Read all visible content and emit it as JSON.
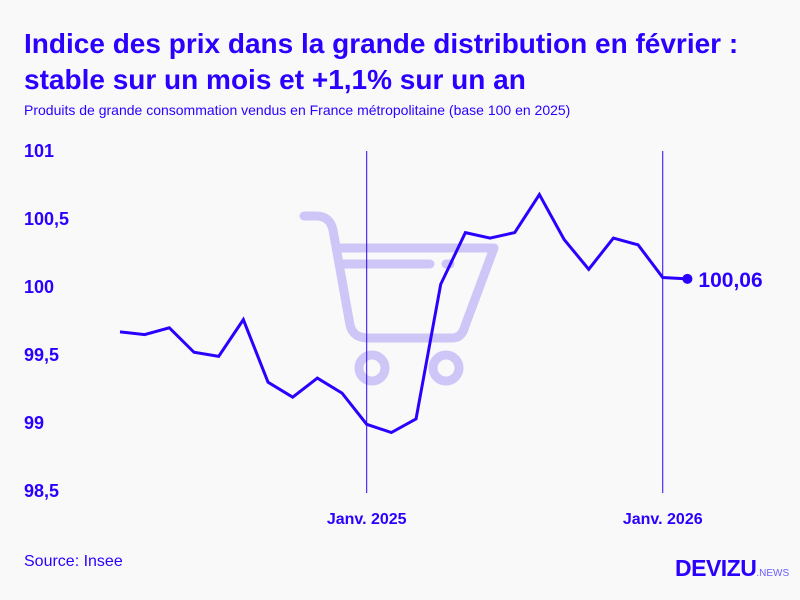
{
  "title": "Indice des prix dans la grande distribution en février : stable sur un mois et +1,1% sur un an",
  "subtitle": "Produits de grande consommation vendus en France métropolitaine (base 100 en 2025)",
  "source": "Source: Insee",
  "logo": {
    "main": "DEVIZU",
    "suffix": ".NEWS"
  },
  "colors": {
    "line": "#2b00ff",
    "cart": "#cdc6f7",
    "background": "#f9f9f9"
  },
  "icons": [
    "shopping-cart-icon"
  ],
  "chart_data": {
    "type": "line",
    "x": [
      "2024-03",
      "2024-04",
      "2024-05",
      "2024-06",
      "2024-07",
      "2024-08",
      "2024-09",
      "2024-10",
      "2024-11",
      "2024-12",
      "2025-01",
      "2025-02",
      "2025-03",
      "2025-04",
      "2025-05",
      "2025-06",
      "2025-07",
      "2025-08",
      "2025-09",
      "2025-10",
      "2025-11",
      "2025-12",
      "2026-01",
      "2026-02"
    ],
    "values": [
      99.67,
      99.65,
      99.7,
      99.52,
      99.49,
      99.76,
      99.3,
      99.19,
      99.33,
      99.22,
      98.99,
      98.93,
      99.03,
      100.02,
      100.4,
      100.36,
      100.4,
      100.68,
      100.35,
      100.13,
      100.36,
      100.31,
      100.07,
      100.06
    ],
    "ylim": [
      98.5,
      101
    ],
    "yticks": [
      {
        "v": 101,
        "label": "101"
      },
      {
        "v": 100.5,
        "label": "100,5"
      },
      {
        "v": 100,
        "label": "100"
      },
      {
        "v": 99.5,
        "label": "99,5"
      },
      {
        "v": 99,
        "label": "99"
      },
      {
        "v": 98.5,
        "label": "98,5"
      }
    ],
    "xticks": [
      {
        "x": "2025-01",
        "label": "Janv. 2025"
      },
      {
        "x": "2026-01",
        "label": "Janv. 2026"
      }
    ],
    "end_label": "100,06",
    "grid": false,
    "legend": "none"
  }
}
